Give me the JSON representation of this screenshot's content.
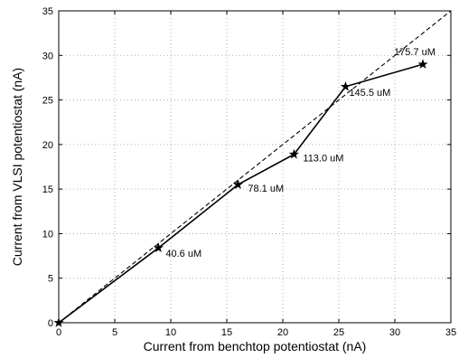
{
  "chart_data": {
    "type": "line",
    "title": "",
    "xlabel": "Current from benchtop potentiostat  (nA)",
    "ylabel": "Current from VLSI potentiostat  (nA)",
    "xlim": [
      0,
      35
    ],
    "ylim": [
      0,
      35
    ],
    "x_ticks": [
      0,
      5,
      10,
      15,
      20,
      25,
      30,
      35
    ],
    "y_ticks": [
      0,
      5,
      10,
      15,
      20,
      25,
      30,
      35
    ],
    "grid": true,
    "series": [
      {
        "style": "solid-with-star-markers",
        "color": "#000000",
        "x": [
          0,
          8.9,
          16.0,
          21.0,
          25.6,
          32.5
        ],
        "y": [
          0,
          8.4,
          15.5,
          18.9,
          26.5,
          29.0
        ]
      },
      {
        "style": "dashed-reference",
        "color": "#000000",
        "x": [
          0,
          35
        ],
        "y": [
          0,
          35
        ]
      }
    ],
    "annotations": [
      {
        "text": "40.6 uM",
        "x": 8.9,
        "y": 8.4
      },
      {
        "text": "78.1 uM",
        "x": 16.0,
        "y": 15.5
      },
      {
        "text": "113.0 uM",
        "x": 21.0,
        "y": 18.9
      },
      {
        "text": "145.5 uM",
        "x": 25.6,
        "y": 26.5
      },
      {
        "text": "175.7 uM",
        "x": 32.5,
        "y": 29.0
      }
    ]
  }
}
